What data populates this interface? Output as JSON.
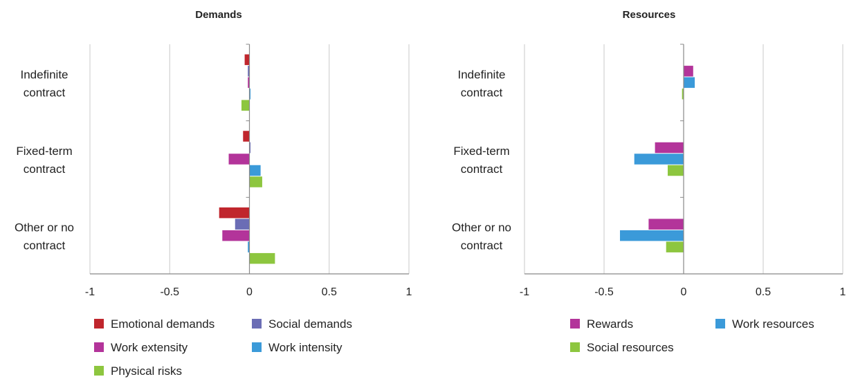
{
  "chart_data": [
    {
      "type": "bar",
      "orientation": "horizontal",
      "title": "Demands",
      "categories": [
        "Indefinite contract",
        "Fixed-term contract",
        "Other or no contract"
      ],
      "xlim": [
        -1,
        1
      ],
      "xticks": [
        -1,
        -0.5,
        0,
        0.5,
        1
      ],
      "grid": true,
      "legend_position": "bottom",
      "series": [
        {
          "name": "Emotional demands",
          "color": "#c0262d",
          "values": [
            -0.03,
            -0.04,
            -0.19
          ]
        },
        {
          "name": "Social demands",
          "color": "#6b6db5",
          "values": [
            -0.01,
            0.0,
            -0.09
          ]
        },
        {
          "name": "Work extensity",
          "color": "#b3349a",
          "values": [
            -0.01,
            -0.13,
            -0.17
          ]
        },
        {
          "name": "Work intensity",
          "color": "#3b9ad9",
          "values": [
            0.0,
            0.07,
            -0.01
          ]
        },
        {
          "name": "Physical risks",
          "color": "#8dc63f",
          "values": [
            -0.05,
            0.08,
            0.16
          ]
        }
      ]
    },
    {
      "type": "bar",
      "orientation": "horizontal",
      "title": "Resources",
      "categories": [
        "Indefinite contract",
        "Fixed-term contract",
        "Other or no contract"
      ],
      "xlim": [
        -1,
        1
      ],
      "xticks": [
        -1,
        -0.5,
        0,
        0.5,
        1
      ],
      "grid": true,
      "legend_position": "bottom",
      "series": [
        {
          "name": "Rewards",
          "color": "#b3349a",
          "values": [
            0.06,
            -0.18,
            -0.22
          ]
        },
        {
          "name": "Work resources",
          "color": "#3b9ad9",
          "values": [
            0.07,
            -0.31,
            -0.4
          ]
        },
        {
          "name": "Social resources",
          "color": "#8dc63f",
          "values": [
            -0.01,
            -0.1,
            -0.11
          ]
        }
      ]
    }
  ]
}
